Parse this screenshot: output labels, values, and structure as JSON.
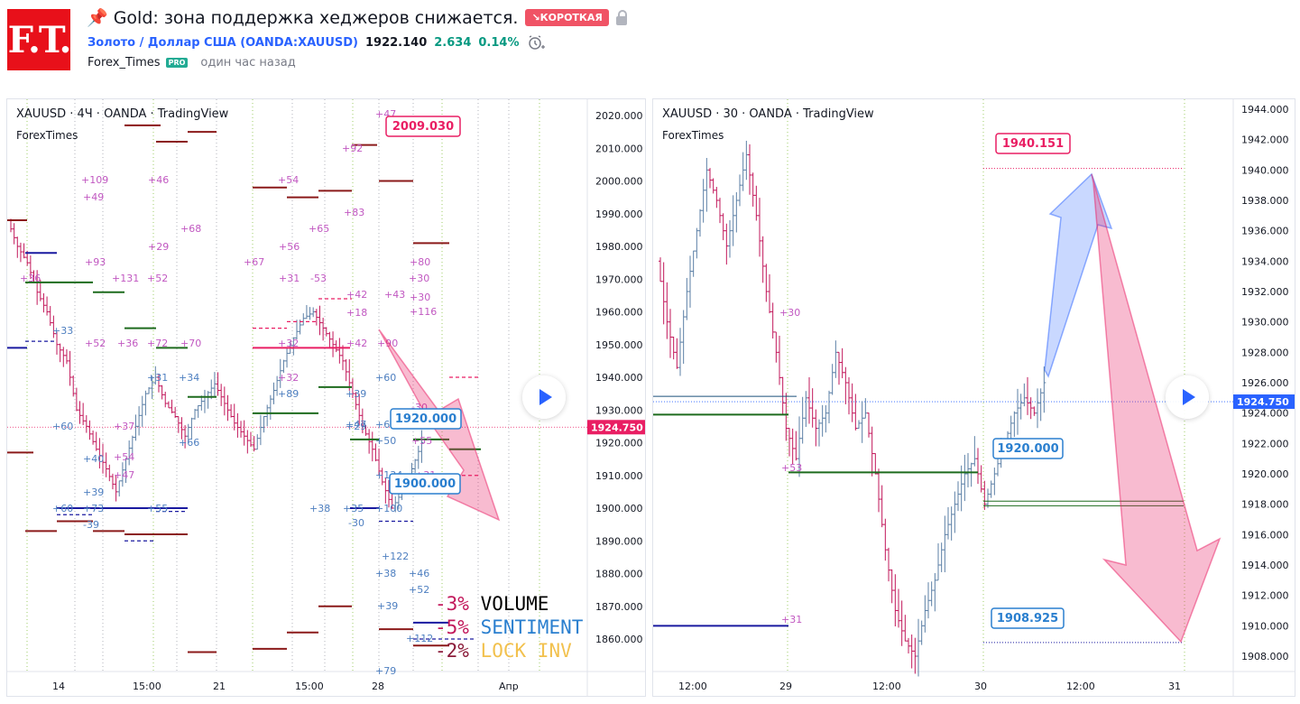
{
  "header": {
    "logo_text": "F.T.",
    "title": "📌 Gold: зона поддержка хеджеров снижается.",
    "badge": "↘КОРОТКАЯ",
    "symbol_name": "Золото / Доллар США (OANDA:XAUUSD)",
    "price": "1922.140",
    "change": "2.634",
    "change_pct": "0.14%",
    "author": "Forex_Times",
    "pro_badge": "PRO",
    "time_ago": "один час назад"
  },
  "left_chart": {
    "title": "XAUUSD · 4Ч · OANDA · TradingView",
    "subtitle": "ForexTimes",
    "current_price": "1924.750",
    "price_axis": [
      "2020.000",
      "2010.000",
      "2000.000",
      "1990.000",
      "1980.000",
      "1970.000",
      "1960.000",
      "1950.000",
      "1940.000",
      "1930.000",
      "1920.000",
      "1910.000",
      "1900.000",
      "1890.000",
      "1880.000",
      "1870.000",
      "1860.000"
    ],
    "time_axis": [
      "14",
      "15:00",
      "21",
      "15:00",
      "28",
      "Апр"
    ],
    "callouts": [
      "2009.030",
      "1920.000",
      "1900.000"
    ],
    "legend": [
      {
        "pct": "-3%",
        "label": "VOLUME"
      },
      {
        "pct": "-5%",
        "label": "SENTIMENT"
      },
      {
        "pct": "-2%",
        "label": "LOCK INV"
      }
    ],
    "annotations_pink": [
      "+47",
      "+92",
      "+109",
      "+49",
      "+46",
      "+54",
      "+83",
      "+68",
      "+29",
      "+65",
      "+56",
      "+93",
      "+67",
      "+80",
      "+30",
      "+30",
      "+36",
      "+131",
      "+52",
      "+31",
      "-53",
      "+42",
      "+43",
      "+116",
      "+18",
      "+52",
      "+36",
      "+72",
      "+70",
      "+32",
      "+42",
      "+90",
      "+32",
      "+37",
      "+54",
      "+47",
      "-30",
      "+55",
      "+31"
    ],
    "annotations_blue": [
      "+33",
      "+31",
      "+34",
      "+39",
      "+47",
      "+60",
      "+29",
      "+66",
      "+40",
      "+39",
      "+60",
      "+73",
      "-39",
      "+55",
      "+38",
      "+35",
      "-30",
      "+100",
      "+134",
      "+122",
      "+38",
      "+46",
      "+52",
      "+39",
      "+112",
      "+79",
      "+60",
      "+6",
      "+50",
      "+89"
    ]
  },
  "right_chart": {
    "title": "XAUUSD · 30 · OANDA · TradingView",
    "subtitle": "ForexTimes",
    "current_price": "1924.750",
    "price_axis": [
      "1944.000",
      "1942.000",
      "1940.000",
      "1938.000",
      "1936.000",
      "1934.000",
      "1932.000",
      "1930.000",
      "1928.000",
      "1926.000",
      "1924.000",
      "1922.000",
      "1920.000",
      "1918.000",
      "1916.000",
      "1914.000",
      "1912.000",
      "1910.000",
      "1908.000"
    ],
    "time_axis": [
      "12:00",
      "29",
      "12:00",
      "30",
      "12:00",
      "31"
    ],
    "callouts": [
      "1940.151",
      "1920.000",
      "1908.925"
    ],
    "annotations": [
      "+30",
      "+53",
      "+31"
    ]
  },
  "colors": {
    "accent": "#2962ff",
    "red": "#e8101a",
    "short_badge": "#f05365",
    "pink": "#e91e63",
    "up": "#089981",
    "bear_candle": "#c2185b",
    "bull_candle": "#5b7fa6"
  }
}
